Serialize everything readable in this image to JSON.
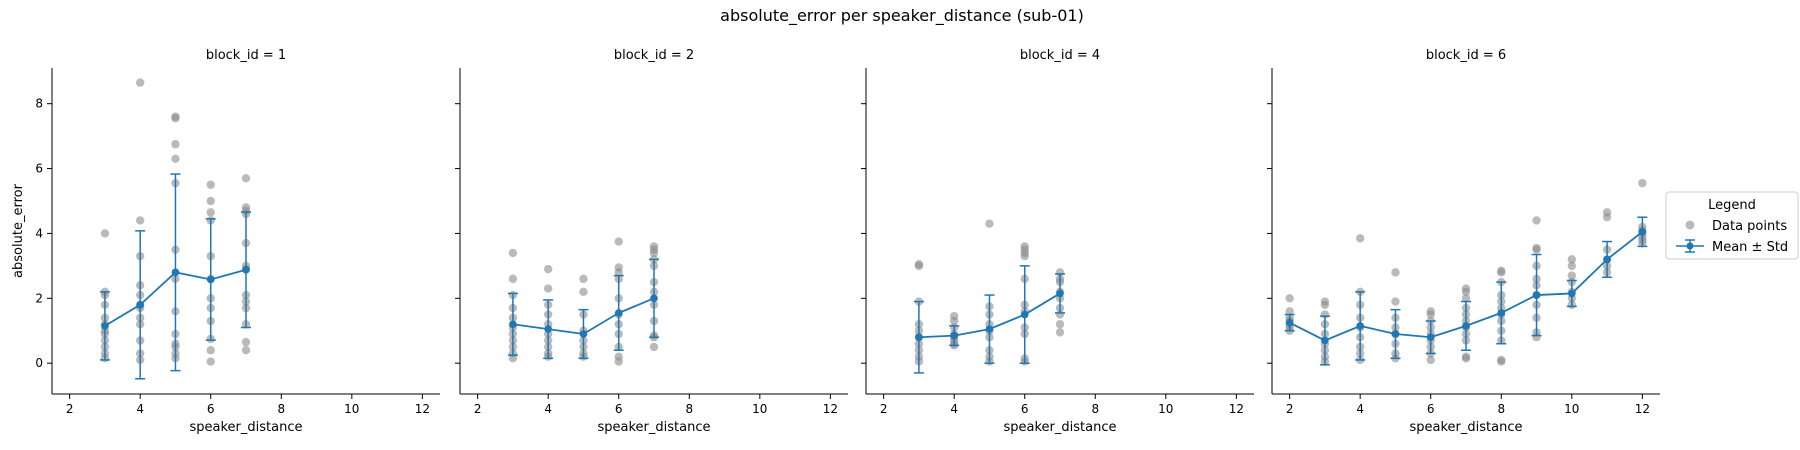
{
  "figure": {
    "title": "absolute_error per speaker_distance (sub-01)"
  },
  "legend": {
    "title": "Legend",
    "items": [
      "Data points",
      "Mean ± Std"
    ]
  },
  "colors": {
    "points": "#8c8c8c",
    "mean": "#1f77b4"
  },
  "chart_data": [
    {
      "type": "scatter",
      "title": "block_id = 1",
      "xlabel": "speaker_distance",
      "ylabel": "absolute_error",
      "xlim": [
        1.5,
        12.5
      ],
      "ylim": [
        -0.95,
        9.1
      ],
      "xticks": [
        2,
        4,
        6,
        8,
        10,
        12
      ],
      "yticks": [
        0,
        2,
        4,
        6,
        8
      ],
      "points": [
        [
          3,
          4.0
        ],
        [
          3,
          2.2
        ],
        [
          3,
          2.1
        ],
        [
          3,
          1.8
        ],
        [
          3,
          1.4
        ],
        [
          3,
          1.2
        ],
        [
          3,
          1.0
        ],
        [
          3,
          0.9
        ],
        [
          3,
          0.7
        ],
        [
          3,
          0.5
        ],
        [
          3,
          0.3
        ],
        [
          3,
          0.15
        ],
        [
          4,
          8.65
        ],
        [
          4,
          4.4
        ],
        [
          4,
          3.3
        ],
        [
          4,
          2.4
        ],
        [
          4,
          2.1
        ],
        [
          4,
          1.8
        ],
        [
          4,
          1.7
        ],
        [
          4,
          1.4
        ],
        [
          4,
          1.2
        ],
        [
          4,
          0.7
        ],
        [
          4,
          0.3
        ],
        [
          4,
          0.1
        ],
        [
          5,
          7.6
        ],
        [
          5,
          7.55
        ],
        [
          5,
          6.75
        ],
        [
          5,
          6.3
        ],
        [
          5,
          5.55
        ],
        [
          5,
          3.5
        ],
        [
          5,
          2.6
        ],
        [
          5,
          1.6
        ],
        [
          5,
          0.9
        ],
        [
          5,
          0.6
        ],
        [
          5,
          0.5
        ],
        [
          5,
          0.3
        ],
        [
          5,
          0.15
        ],
        [
          6,
          5.5
        ],
        [
          6,
          5.0
        ],
        [
          6,
          4.65
        ],
        [
          6,
          4.4
        ],
        [
          6,
          3.3
        ],
        [
          6,
          2.6
        ],
        [
          6,
          2.0
        ],
        [
          6,
          1.7
        ],
        [
          6,
          1.3
        ],
        [
          6,
          0.75
        ],
        [
          6,
          0.4
        ],
        [
          6,
          0.05
        ],
        [
          7,
          5.7
        ],
        [
          7,
          4.8
        ],
        [
          7,
          4.7
        ],
        [
          7,
          4.6
        ],
        [
          7,
          3.7
        ],
        [
          7,
          3.0
        ],
        [
          7,
          2.9
        ],
        [
          7,
          2.1
        ],
        [
          7,
          1.9
        ],
        [
          7,
          1.7
        ],
        [
          7,
          1.2
        ],
        [
          7,
          0.65
        ],
        [
          7,
          0.4
        ]
      ],
      "mean": [
        [
          3,
          1.15
        ],
        [
          4,
          1.8
        ],
        [
          5,
          2.8
        ],
        [
          6,
          2.58
        ],
        [
          7,
          2.88
        ]
      ],
      "std": [
        1.05,
        2.28,
        3.03,
        1.87,
        1.78
      ]
    },
    {
      "type": "scatter",
      "title": "block_id = 2",
      "xlabel": "speaker_distance",
      "ylabel": "",
      "xlim": [
        1.5,
        12.5
      ],
      "ylim": [
        -0.95,
        9.1
      ],
      "xticks": [
        2,
        4,
        6,
        8,
        10,
        12
      ],
      "yticks": [
        0,
        2,
        4,
        6,
        8
      ],
      "points": [
        [
          3,
          3.4
        ],
        [
          3,
          2.6
        ],
        [
          3,
          2.1
        ],
        [
          3,
          1.7
        ],
        [
          3,
          1.4
        ],
        [
          3,
          1.1
        ],
        [
          3,
          0.9
        ],
        [
          3,
          0.7
        ],
        [
          3,
          0.5
        ],
        [
          3,
          0.3
        ],
        [
          3,
          0.15
        ],
        [
          4,
          2.9
        ],
        [
          4,
          2.3
        ],
        [
          4,
          1.8
        ],
        [
          4,
          1.5
        ],
        [
          4,
          1.2
        ],
        [
          4,
          0.9
        ],
        [
          4,
          0.7
        ],
        [
          4,
          0.5
        ],
        [
          4,
          0.3
        ],
        [
          4,
          0.2
        ],
        [
          5,
          2.6
        ],
        [
          5,
          2.2
        ],
        [
          5,
          1.5
        ],
        [
          5,
          1.0
        ],
        [
          5,
          0.7
        ],
        [
          5,
          0.5
        ],
        [
          5,
          0.3
        ],
        [
          5,
          0.2
        ],
        [
          6,
          3.75
        ],
        [
          6,
          2.95
        ],
        [
          6,
          2.8
        ],
        [
          6,
          2.6
        ],
        [
          6,
          2.0
        ],
        [
          6,
          1.5
        ],
        [
          6,
          1.2
        ],
        [
          6,
          0.9
        ],
        [
          6,
          0.5
        ],
        [
          6,
          0.2
        ],
        [
          6,
          0.05
        ],
        [
          7,
          3.6
        ],
        [
          7,
          3.5
        ],
        [
          7,
          3.4
        ],
        [
          7,
          3.2
        ],
        [
          7,
          3.0
        ],
        [
          7,
          2.5
        ],
        [
          7,
          2.2
        ],
        [
          7,
          1.8
        ],
        [
          7,
          1.3
        ],
        [
          7,
          0.85
        ],
        [
          7,
          0.8
        ],
        [
          7,
          0.5
        ]
      ],
      "mean": [
        [
          3,
          1.2
        ],
        [
          4,
          1.05
        ],
        [
          5,
          0.9
        ],
        [
          6,
          1.55
        ],
        [
          7,
          2.0
        ]
      ],
      "std": [
        0.95,
        0.9,
        0.75,
        1.15,
        1.2
      ]
    },
    {
      "type": "scatter",
      "title": "block_id = 4",
      "xlabel": "speaker_distance",
      "ylabel": "",
      "xlim": [
        1.5,
        12.5
      ],
      "ylim": [
        -0.95,
        9.1
      ],
      "xticks": [
        2,
        4,
        6,
        8,
        10,
        12
      ],
      "yticks": [
        0,
        2,
        4,
        6,
        8
      ],
      "points": [
        [
          3,
          3.05
        ],
        [
          3,
          3.0
        ],
        [
          3,
          1.9
        ],
        [
          3,
          1.2
        ],
        [
          3,
          1.0
        ],
        [
          3,
          0.8
        ],
        [
          3,
          0.6
        ],
        [
          3,
          0.4
        ],
        [
          3,
          0.2
        ],
        [
          3,
          0.05
        ],
        [
          4,
          1.45
        ],
        [
          4,
          1.3
        ],
        [
          4,
          1.1
        ],
        [
          4,
          0.9
        ],
        [
          4,
          0.8
        ],
        [
          4,
          0.7
        ],
        [
          4,
          0.6
        ],
        [
          4,
          0.55
        ],
        [
          5,
          4.3
        ],
        [
          5,
          1.75
        ],
        [
          5,
          1.5
        ],
        [
          5,
          1.2
        ],
        [
          5,
          1.0
        ],
        [
          5,
          0.8
        ],
        [
          5,
          0.4
        ],
        [
          5,
          0.2
        ],
        [
          5,
          0.05
        ],
        [
          6,
          3.6
        ],
        [
          6,
          3.5
        ],
        [
          6,
          3.4
        ],
        [
          6,
          3.3
        ],
        [
          6,
          2.6
        ],
        [
          6,
          1.8
        ],
        [
          6,
          1.6
        ],
        [
          6,
          1.1
        ],
        [
          6,
          0.9
        ],
        [
          6,
          0.15
        ],
        [
          6,
          0.05
        ],
        [
          7,
          2.8
        ],
        [
          7,
          2.6
        ],
        [
          7,
          2.5
        ],
        [
          7,
          2.2
        ],
        [
          7,
          2.0
        ],
        [
          7,
          1.7
        ],
        [
          7,
          1.5
        ],
        [
          7,
          1.2
        ],
        [
          7,
          0.95
        ]
      ],
      "mean": [
        [
          3,
          0.8
        ],
        [
          4,
          0.85
        ],
        [
          5,
          1.05
        ],
        [
          6,
          1.5
        ],
        [
          7,
          2.15
        ]
      ],
      "std": [
        1.1,
        0.3,
        1.05,
        1.5,
        0.6
      ]
    },
    {
      "type": "scatter",
      "title": "block_id = 6",
      "xlabel": "speaker_distance",
      "ylabel": "",
      "xlim": [
        1.5,
        12.5
      ],
      "ylim": [
        -0.95,
        9.1
      ],
      "xticks": [
        2,
        4,
        6,
        8,
        10,
        12
      ],
      "yticks": [
        0,
        2,
        4,
        6,
        8
      ],
      "points": [
        [
          2,
          2.0
        ],
        [
          2,
          1.6
        ],
        [
          2,
          1.4
        ],
        [
          2,
          1.3
        ],
        [
          2,
          1.2
        ],
        [
          2,
          1.1
        ],
        [
          2,
          1.0
        ],
        [
          3,
          1.9
        ],
        [
          3,
          1.8
        ],
        [
          3,
          1.5
        ],
        [
          3,
          1.2
        ],
        [
          3,
          0.9
        ],
        [
          3,
          0.6
        ],
        [
          3,
          0.4
        ],
        [
          3,
          0.2
        ],
        [
          3,
          0.05
        ],
        [
          4,
          3.85
        ],
        [
          4,
          2.2
        ],
        [
          4,
          1.8
        ],
        [
          4,
          1.4
        ],
        [
          4,
          1.1
        ],
        [
          4,
          0.8
        ],
        [
          4,
          0.5
        ],
        [
          4,
          0.3
        ],
        [
          4,
          0.1
        ],
        [
          5,
          2.8
        ],
        [
          5,
          1.9
        ],
        [
          5,
          1.4
        ],
        [
          5,
          1.1
        ],
        [
          5,
          0.9
        ],
        [
          5,
          0.6
        ],
        [
          5,
          0.3
        ],
        [
          5,
          0.15
        ],
        [
          6,
          1.6
        ],
        [
          6,
          1.5
        ],
        [
          6,
          1.3
        ],
        [
          6,
          1.1
        ],
        [
          6,
          0.9
        ],
        [
          6,
          0.7
        ],
        [
          6,
          0.5
        ],
        [
          6,
          0.3
        ],
        [
          6,
          0.1
        ],
        [
          7,
          2.3
        ],
        [
          7,
          2.2
        ],
        [
          7,
          2.0
        ],
        [
          7,
          1.7
        ],
        [
          7,
          1.5
        ],
        [
          7,
          1.3
        ],
        [
          7,
          1.1
        ],
        [
          7,
          0.9
        ],
        [
          7,
          0.7
        ],
        [
          7,
          0.2
        ],
        [
          7,
          0.15
        ],
        [
          8,
          2.85
        ],
        [
          8,
          2.8
        ],
        [
          8,
          2.5
        ],
        [
          8,
          2.1
        ],
        [
          8,
          1.9
        ],
        [
          8,
          1.7
        ],
        [
          8,
          1.5
        ],
        [
          8,
          1.3
        ],
        [
          8,
          1.0
        ],
        [
          8,
          0.7
        ],
        [
          8,
          0.1
        ],
        [
          8,
          0.05
        ],
        [
          9,
          4.4
        ],
        [
          9,
          3.55
        ],
        [
          9,
          3.5
        ],
        [
          9,
          3.0
        ],
        [
          9,
          2.6
        ],
        [
          9,
          2.4
        ],
        [
          9,
          2.1
        ],
        [
          9,
          1.8
        ],
        [
          9,
          1.4
        ],
        [
          9,
          0.95
        ],
        [
          9,
          0.8
        ],
        [
          10,
          3.2
        ],
        [
          10,
          3.0
        ],
        [
          10,
          2.7
        ],
        [
          10,
          2.5
        ],
        [
          10,
          2.2
        ],
        [
          10,
          2.0
        ],
        [
          10,
          1.8
        ],
        [
          11,
          4.65
        ],
        [
          11,
          4.5
        ],
        [
          11,
          3.5
        ],
        [
          11,
          3.2
        ],
        [
          11,
          3.0
        ],
        [
          11,
          2.8
        ],
        [
          12,
          5.55
        ],
        [
          12,
          4.2
        ],
        [
          12,
          4.1
        ],
        [
          12,
          4.0
        ],
        [
          12,
          3.9
        ],
        [
          12,
          3.8
        ],
        [
          12,
          3.7
        ]
      ],
      "mean": [
        [
          2,
          1.25
        ],
        [
          3,
          0.7
        ],
        [
          4,
          1.15
        ],
        [
          5,
          0.9
        ],
        [
          6,
          0.8
        ],
        [
          7,
          1.15
        ],
        [
          8,
          1.55
        ],
        [
          9,
          2.1
        ],
        [
          10,
          2.15
        ],
        [
          11,
          3.2
        ],
        [
          12,
          4.05
        ]
      ],
      "std": [
        0.25,
        0.75,
        1.05,
        0.75,
        0.5,
        0.75,
        0.95,
        1.25,
        0.4,
        0.55,
        0.45
      ]
    }
  ]
}
